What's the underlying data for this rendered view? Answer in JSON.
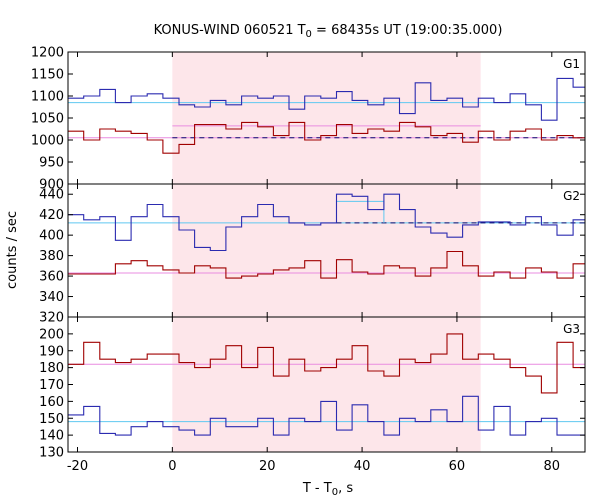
{
  "chart_data": {
    "type": "line",
    "title_main": "KONUS-WIND 060521 T",
    "title_sub": "0",
    "title_rest": " = 68435s UT (19:00:35.000)",
    "xlabel_main": "T - T",
    "xlabel_sub": "0",
    "xlabel_rest": ", s",
    "ylabel": "counts / sec",
    "xlim": [
      -22,
      87
    ],
    "xticks": [
      -20,
      0,
      20,
      40,
      60,
      80
    ],
    "shade": [
      0,
      65
    ],
    "colors": {
      "blue": "#2b2bb0",
      "red": "#a00000",
      "cyan": "#5fc8f0",
      "pink": "#e98ce0",
      "shade": "#fde6ea",
      "dash": "#0b0b6e"
    },
    "panels": [
      {
        "label": "G1",
        "ylim": [
          900,
          1200
        ],
        "yticks": [
          900,
          950,
          1000,
          1050,
          1100,
          1150,
          1200
        ],
        "bin_edges": [
          -22,
          -18.7,
          -15.3,
          -12,
          -8.7,
          -5.3,
          -2,
          1.4,
          4.7,
          8,
          11.3,
          14.6,
          18,
          21.3,
          24.6,
          27.9,
          31.3,
          34.6,
          37.9,
          41.2,
          44.6,
          47.9,
          51.2,
          54.5,
          57.9,
          61.2,
          64.5,
          67.8,
          71.2,
          74.5,
          77.8,
          81.1,
          84.5,
          87
        ],
        "blue": [
          1095,
          1100,
          1115,
          1085,
          1100,
          1105,
          1095,
          1080,
          1075,
          1090,
          1080,
          1100,
          1095,
          1100,
          1070,
          1100,
          1095,
          1110,
          1090,
          1080,
          1095,
          1060,
          1130,
          1090,
          1095,
          1075,
          1095,
          1085,
          1105,
          1080,
          1045,
          1140,
          1120
        ],
        "red": [
          1020,
          1000,
          1025,
          1020,
          1015,
          1000,
          970,
          990,
          1035,
          1035,
          1025,
          1040,
          1030,
          1010,
          1040,
          1000,
          1010,
          1035,
          1015,
          1025,
          1020,
          1040,
          1030,
          1010,
          1015,
          995,
          1020,
          1000,
          1020,
          1025,
          1000,
          1010,
          1005
        ],
        "blue_mean": 1085,
        "red_mean": 1005,
        "red_mean_interval": 1032
      },
      {
        "label": "G2",
        "ylim": [
          320,
          450
        ],
        "yticks": [
          320,
          340,
          360,
          380,
          400,
          420,
          440
        ],
        "bin_edges": [
          -22,
          -18.7,
          -15.3,
          -12,
          -8.7,
          -5.3,
          -2,
          1.4,
          4.7,
          8,
          11.3,
          14.6,
          18,
          21.3,
          24.6,
          27.9,
          31.3,
          34.6,
          37.9,
          41.2,
          44.6,
          47.9,
          51.2,
          54.5,
          57.9,
          61.2,
          64.5,
          67.8,
          71.2,
          74.5,
          77.8,
          81.1,
          84.5,
          87
        ],
        "blue": [
          420,
          415,
          418,
          395,
          418,
          430,
          418,
          405,
          388,
          385,
          408,
          418,
          430,
          418,
          412,
          410,
          412,
          440,
          438,
          425,
          440,
          425,
          408,
          402,
          398,
          410,
          413,
          413,
          410,
          418,
          410,
          400,
          415
        ],
        "red": [
          362,
          362,
          362,
          372,
          375,
          370,
          366,
          363,
          370,
          368,
          358,
          360,
          362,
          366,
          368,
          375,
          358,
          376,
          364,
          362,
          370,
          368,
          360,
          368,
          384,
          370,
          360,
          364,
          358,
          368,
          364,
          358,
          372
        ],
        "blue_mean": 412,
        "red_mean": 363,
        "blue_hist_mean": 433
      },
      {
        "label": "G3",
        "ylim": [
          130,
          210
        ],
        "yticks": [
          130,
          140,
          150,
          160,
          170,
          180,
          190,
          200
        ],
        "bin_edges": [
          -22,
          -18.7,
          -15.3,
          -12,
          -8.7,
          -5.3,
          -2,
          1.4,
          4.7,
          8,
          11.3,
          14.6,
          18,
          21.3,
          24.6,
          27.9,
          31.3,
          34.6,
          37.9,
          41.2,
          44.6,
          47.9,
          51.2,
          54.5,
          57.9,
          61.2,
          64.5,
          67.8,
          71.2,
          74.5,
          77.8,
          81.1,
          84.5,
          87
        ],
        "blue": [
          152,
          157,
          141,
          140,
          145,
          148,
          145,
          143,
          140,
          150,
          145,
          145,
          150,
          140,
          150,
          148,
          160,
          143,
          158,
          148,
          140,
          150,
          148,
          155,
          148,
          163,
          143,
          157,
          140,
          148,
          150,
          140,
          140
        ],
        "red": [
          182,
          195,
          185,
          183,
          185,
          188,
          188,
          183,
          180,
          185,
          193,
          180,
          192,
          175,
          185,
          178,
          180,
          185,
          193,
          178,
          175,
          185,
          183,
          188,
          200,
          185,
          188,
          185,
          180,
          175,
          165,
          195,
          180
        ],
        "blue_mean": 148,
        "red_mean": 182
      }
    ]
  }
}
